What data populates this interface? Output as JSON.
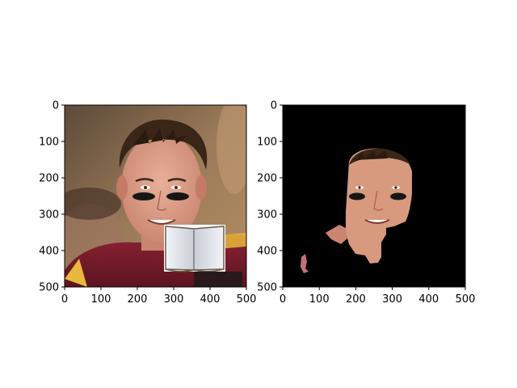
{
  "chart_data": [
    {
      "type": "image",
      "panel": "left",
      "content": "photo of a football player's face with an open-book graphic overlaid lower right",
      "xlim": [
        0,
        500
      ],
      "ylim": [
        500,
        0
      ],
      "x_ticks": [
        0,
        100,
        200,
        300,
        400,
        500
      ],
      "y_ticks": [
        0,
        100,
        200,
        300,
        400,
        500
      ],
      "overlay": {
        "kind": "open-book",
        "x_range": [
          275,
          440
        ],
        "y_range": [
          328,
          465
        ]
      }
    },
    {
      "type": "image",
      "panel": "right",
      "content": "segmentation mask: face region kept, everything else black",
      "background_color": "#000000",
      "xlim": [
        0,
        500
      ],
      "ylim": [
        500,
        0
      ],
      "x_ticks": [
        0,
        100,
        200,
        300,
        400,
        500
      ],
      "y_ticks": [
        0,
        100,
        200,
        300,
        400,
        500
      ]
    }
  ],
  "colors": {
    "skin": "#d89a7f",
    "hair": "#3a2618",
    "jersey": "#7b1e2b",
    "background_blur": "#8a6a4c",
    "eye_black": "#161616",
    "mask_background": "#000000"
  }
}
